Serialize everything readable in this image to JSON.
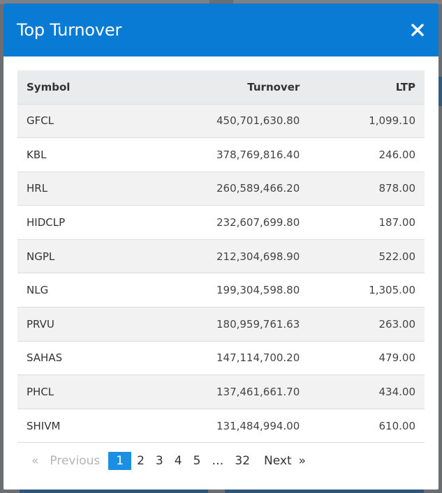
{
  "modal": {
    "title": "Top Turnover",
    "close_icon": "close-icon"
  },
  "table": {
    "headers": {
      "symbol": "Symbol",
      "turnover": "Turnover",
      "ltp": "LTP"
    },
    "rows": [
      {
        "symbol": "GFCL",
        "turnover": "450,701,630.80",
        "ltp": "1,099.10"
      },
      {
        "symbol": "KBL",
        "turnover": "378,769,816.40",
        "ltp": "246.00"
      },
      {
        "symbol": "HRL",
        "turnover": "260,589,466.20",
        "ltp": "878.00"
      },
      {
        "symbol": "HIDCLP",
        "turnover": "232,607,699.80",
        "ltp": "187.00"
      },
      {
        "symbol": "NGPL",
        "turnover": "212,304,698.90",
        "ltp": "522.00"
      },
      {
        "symbol": "NLG",
        "turnover": "199,304,598.80",
        "ltp": "1,305.00"
      },
      {
        "symbol": "PRVU",
        "turnover": "180,959,761.63",
        "ltp": "263.00"
      },
      {
        "symbol": "SAHAS",
        "turnover": "147,114,700.20",
        "ltp": "479.00"
      },
      {
        "symbol": "PHCL",
        "turnover": "137,461,661.70",
        "ltp": "434.00"
      },
      {
        "symbol": "SHIVM",
        "turnover": "131,484,994.00",
        "ltp": "610.00"
      }
    ]
  },
  "pagination": {
    "prev_arrow": "«",
    "previous": "Previous",
    "pages": [
      "1",
      "2",
      "3",
      "4",
      "5"
    ],
    "active_page": "1",
    "ellipsis": "…",
    "last_page": "32",
    "next": "Next",
    "next_arrow": "»"
  },
  "colors": {
    "header_bg": "#0a7bd4",
    "active_page_bg": "#1a8fe3"
  }
}
